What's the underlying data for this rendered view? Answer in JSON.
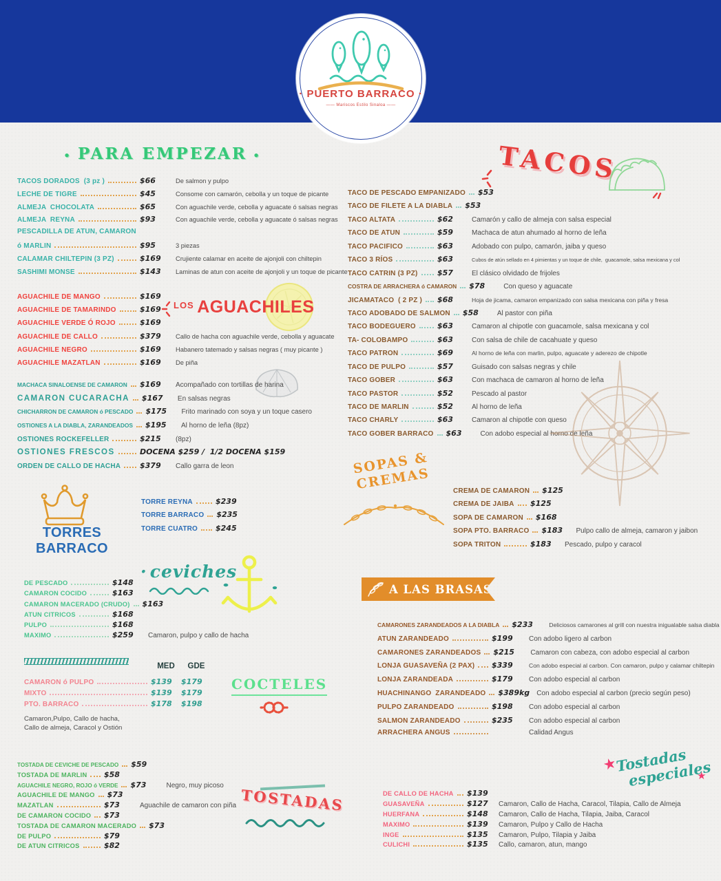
{
  "page": {
    "background": "#f1f0ee",
    "header_blue": "#16379c"
  },
  "logo": {
    "name": "PUERTO BARRACO",
    "tagline": "Mariscos Estilo Sinaloa"
  },
  "icons": {
    "logo": "three-fish",
    "aguachiles": "lemon-slice",
    "extras": "clam-shell",
    "torres": "crown",
    "ceviches": "anchor",
    "cocteles": "rope-knot",
    "tacos": "taco-sketch",
    "sopas": "laurel-branch",
    "brasas": "leaf-sprig",
    "right_column": "compass-rose",
    "especiales": "star"
  },
  "sections": {
    "para_empezar": {
      "title": "PARA EMPEZAR",
      "accent": "#35c878",
      "items": [
        {
          "name": "TACOS DORADOS  (3 pz )",
          "price": "$66",
          "desc": "De salmon y pulpo"
        },
        {
          "name": "LECHE DE TIGRE",
          "price": "$45",
          "desc": "Consome con camarón, cebolla y un toque de picante"
        },
        {
          "name": "ALMEJA  CHOCOLATA",
          "price": "$65",
          "desc": "Con aguachile verde, cebolla y aguacate ó salsas negras"
        },
        {
          "name": "ALMEJA  REYNA",
          "price": "$93",
          "desc": "Con aguachile verde, cebolla y aguacate ó salsas negras"
        },
        {
          "name": "PESCADILLA DE ATUN, CAMARON",
          "price": "",
          "desc": "",
          "no_leader": true
        },
        {
          "name": "ó MARLIN",
          "price": "$95",
          "desc": "3 piezas"
        },
        {
          "name": "CALAMAR CHILTEPIN (3 PZ)",
          "price": "$169",
          "desc": "Crujiente calamar en aceite de ajonjoli con chiltepin"
        },
        {
          "name": "SASHIMI MONSE",
          "price": "$143",
          "desc": "Laminas de atun con aceite de ajonjoli y un toque de picante"
        }
      ]
    },
    "aguachiles": {
      "title_prefix": "LOS",
      "title": "AGUACHILES",
      "accent": "#e8403e",
      "items": [
        {
          "name": "AGUACHILE DE MANGO",
          "price": "$169",
          "desc": ""
        },
        {
          "name": "AGUACHILE DE TAMARINDO",
          "price": "$169",
          "desc": ""
        },
        {
          "name": "AGUACHILE VERDE Ó ROJO",
          "price": "$169",
          "desc": ""
        },
        {
          "name": "AGUACHILE DE CALLO",
          "price": "$379",
          "desc": "Callo de hacha con aguachile verde, cebolla y aguacate"
        },
        {
          "name": "AGUACHILE NEGRO",
          "price": "$169",
          "desc": "Habanero tatemado y salsas negras ( muy picante )"
        },
        {
          "name": "AGUACHILE MAZATLAN",
          "price": "$169",
          "desc": "De piña"
        }
      ]
    },
    "extras": {
      "items": [
        {
          "name": "MACHACA SINALOENSE DE CAMARON",
          "price": "$169",
          "desc": "Acompañado con tortillas de harina"
        },
        {
          "name": "CAMARON CUCARACHA",
          "price": "$167",
          "desc": "En salsas negras",
          "big": true
        },
        {
          "name": "CHICHARRON DE CAMARON ó PESCADO",
          "price": "$175",
          "desc": "Frito marinado con soya y un toque casero"
        },
        {
          "name": "OSTIONES A LA DIABLA, ZARANDEADOS",
          "price": "$195",
          "desc": "Al horno de leña (8pz)"
        },
        {
          "name": "OSTIONES ROCKEFELLER",
          "price": "$215",
          "desc": "(8pz)"
        },
        {
          "name": "OSTIONES FRESCOS",
          "price": "DOCENA $259 /  1/2 DOCENA $159",
          "desc": "",
          "big": true
        },
        {
          "name": "ORDEN DE CALLO DE HACHA",
          "price": "$379",
          "desc": "Callo garra de leon"
        }
      ]
    },
    "torres": {
      "title": "TORRES BARRACO",
      "accent": "#2a6cb5",
      "items": [
        {
          "name": "TORRE REYNA",
          "price": "$239",
          "desc": ""
        },
        {
          "name": "TORRE BARRACO",
          "price": "$235",
          "desc": ""
        },
        {
          "name": "TORRE CUATRO",
          "price": "$245",
          "desc": ""
        }
      ]
    },
    "ceviches": {
      "title": "ceviches",
      "accent": "#2fa394",
      "items": [
        {
          "name": "DE PESCADO",
          "price": "$148",
          "desc": ""
        },
        {
          "name": "CAMARON COCIDO",
          "price": "$163",
          "desc": ""
        },
        {
          "name": "CAMARON MACERADO (CRUDO)",
          "price": "$163",
          "desc": ""
        },
        {
          "name": "ATUN CITRICOS",
          "price": "$168",
          "desc": ""
        },
        {
          "name": "PULPO",
          "price": "$168",
          "desc": ""
        },
        {
          "name": "MAXIMO",
          "price": "$259",
          "desc": "Camaron, pulpo y callo de hacha"
        }
      ]
    },
    "cocteles": {
      "title": "COCTELES",
      "accent": "#5ce08d",
      "col_med": "MED",
      "col_gde": "GDE",
      "note1": "Camaron,Pulpo, Callo de hacha,",
      "note2": "Callo de almeja, Caracol y Ostión",
      "items": [
        {
          "name": "CAMARON ó PULPO",
          "price": "$139",
          "price2": "$179"
        },
        {
          "name": "MIXTO",
          "price": "$139",
          "price2": "$179"
        },
        {
          "name": "PTO. BARRACO",
          "price": "$178",
          "price2": "$198"
        }
      ]
    },
    "tostadas": {
      "title": "TOSTADAS",
      "accent": "#e8484b",
      "items": [
        {
          "name": "TOSTADA DE CEVICHE DE PESCADO",
          "price": "$59",
          "desc": ""
        },
        {
          "name": "TOSTADA DE MARLIN",
          "price": "$58",
          "desc": ""
        },
        {
          "name": "AGUACHILE NEGRO, ROJO ó VERDE",
          "price": "$73",
          "desc": "Negro, muy picoso"
        },
        {
          "name": "AGUACHILE DE MANGO",
          "price": "$73",
          "desc": ""
        },
        {
          "name": "MAZATLAN",
          "price": "$73",
          "desc": "Aguachile de camaron con piña"
        },
        {
          "name": "DE CAMARON COCIDO",
          "price": "$73",
          "desc": ""
        },
        {
          "name": "TOSTADA DE CAMARON MACERADO",
          "price": "$73",
          "desc": ""
        },
        {
          "name": "DE PULPO",
          "price": "$79",
          "desc": ""
        },
        {
          "name": "DE ATUN CITRICOS",
          "price": "$82",
          "desc": ""
        }
      ]
    },
    "tacos": {
      "title": "TACOS",
      "accent": "#e63e3c",
      "items": [
        {
          "name": "TACO DE PESCADO EMPANIZADO",
          "price": "$53",
          "desc": ""
        },
        {
          "name": "TACO DE FILETE A LA DIABLA",
          "price": "$53",
          "desc": ""
        },
        {
          "name": "TACO ALTATA",
          "price": "$62",
          "desc": "Camarón y callo de almeja con salsa especial"
        },
        {
          "name": "TACO DE ATUN",
          "price": "$59",
          "desc": "Machaca de atun ahumado al horno de leña"
        },
        {
          "name": "TACO PACIFICO",
          "price": "$63",
          "desc": "Adobado con pulpo, camarón, jaiba y queso"
        },
        {
          "name": "TACO 3 RÍOS",
          "price": "$63",
          "desc": "Cubos de atún sellado en 4 pimientas y un toque de chile,  guacamole, salsa mexicana y col"
        },
        {
          "name": "TACO CATRIN (3 PZ)",
          "price": "$57",
          "desc": "El clásico olvidado de frijoles"
        },
        {
          "name": "COSTRA DE ARRACHERA ó CAMARON",
          "price": "$78",
          "desc": "Con queso y aguacate"
        },
        {
          "name": "JICAMATACO  ( 2 PZ )",
          "price": "$68",
          "desc": "Hoja de jicama, camaron empanizado con salsa mexicana con piña y fresa"
        },
        {
          "name": "TACO ADOBADO DE SALMON",
          "price": "$58",
          "desc": "Al pastor con piña"
        },
        {
          "name": "TACO BODEGUERO",
          "price": "$63",
          "desc": "Camaron al chipotle con guacamole, salsa mexicana y col"
        },
        {
          "name": "TA- COLOBAMPO",
          "price": "$63",
          "desc": "Con salsa de chile de cacahuate y queso"
        },
        {
          "name": "TACO PATRON",
          "price": "$69",
          "desc": "Al horno de leña con marlin, pulpo, aguacate y aderezo de chipotle"
        },
        {
          "name": "TACO DE PULPO",
          "price": "$57",
          "desc": "Guisado con salsas negras y chile"
        },
        {
          "name": "TACO GOBER",
          "price": "$63",
          "desc": "Con machaca de camaron al horno de leña"
        },
        {
          "name": "TACO PASTOR",
          "price": "$52",
          "desc": "Pescado al pastor"
        },
        {
          "name": "TACO DE MARLIN",
          "price": "$52",
          "desc": "Al horno de leña"
        },
        {
          "name": "TACO CHARLY",
          "price": "$63",
          "desc": "Camaron al chipotle con queso"
        },
        {
          "name": "TACO GOBER BARRACO",
          "price": "$63",
          "desc": "Con adobo especial al horno de leña"
        }
      ]
    },
    "sopas": {
      "title1": "SOPAS &",
      "title2": "CREMAS",
      "accent": "#e8942d",
      "items": [
        {
          "name": "CREMA DE CAMARON",
          "price": "$125",
          "desc": ""
        },
        {
          "name": "CREMA DE JAIBA",
          "price": "$125",
          "desc": ""
        },
        {
          "name": "SOPA DE CAMARON",
          "price": "$168",
          "desc": ""
        },
        {
          "name": "SOPA PTO. BARRACO",
          "price": "$183",
          "desc": "Pulpo callo de almeja, camaron y jaibon"
        },
        {
          "name": "SOPA TRITON",
          "price": "$183",
          "desc": "Pescado, pulpo y caracol"
        }
      ]
    },
    "brasas": {
      "title": "A LAS BRASAS",
      "accent": "#e28d2a",
      "items": [
        {
          "name": "CAMARONES ZARANDEADOS A LA DIABLA",
          "price": "$233",
          "desc": "Deliciosos camarones al grill con nuestra inigualable salsa diabla"
        },
        {
          "name": "ATUN ZARANDEADO",
          "price": "$199",
          "desc": "Con adobo ligero al carbon"
        },
        {
          "name": "CAMARONES ZARANDEADOS",
          "price": "$215",
          "desc": "Camaron con cabeza, con adobo especial al carbon"
        },
        {
          "name": "LONJA GUASAVEÑA (2 PAX)",
          "price": "$339",
          "desc": "Con adobo especial al carbon. Con camaron, pulpo y calamar chiltepin"
        },
        {
          "name": "LONJA ZARANDEADA",
          "price": "$179",
          "desc": "Con adobo especial al carbon"
        },
        {
          "name": "HUACHINANGO  ZARANDEADO",
          "price": "$389kg",
          "desc": "Con adobo especial al carbon (precio según peso)"
        },
        {
          "name": "PULPO ZARANDEADO",
          "price": "$198",
          "desc": "Con adobo especial al carbon"
        },
        {
          "name": "SALMON ZARANDEADO",
          "price": "$235",
          "desc": "Con adobo especial al carbon"
        },
        {
          "name": "ARRACHERA ANGUS",
          "price": "",
          "desc": "Calidad Angus"
        }
      ]
    },
    "especiales": {
      "title1": "Tostadas",
      "title2": "especiales",
      "accent": "#2fa394",
      "items": [
        {
          "name": "DE CALLO DE HACHA",
          "price": "$139",
          "desc": ""
        },
        {
          "name": "GUASAVEÑA",
          "price": "$127",
          "desc": "Camaron, Callo de Hacha, Caracol, Tilapia, Callo de Almeja"
        },
        {
          "name": "HUERFANA",
          "price": "$148",
          "desc": "Camaron, Callo de Hacha, Tilapia, Jaiba, Caracol"
        },
        {
          "name": "MAXIMO",
          "price": "$139",
          "desc": "Camaron, Pulpo y Callo de Hacha"
        },
        {
          "name": "INGE",
          "price": "$135",
          "desc": "Camaron, Pulpo, Tilapia y Jaiba"
        },
        {
          "name": "CULICHI",
          "price": "$135",
          "desc": "Callo, camaron, atun, mango"
        }
      ]
    }
  }
}
